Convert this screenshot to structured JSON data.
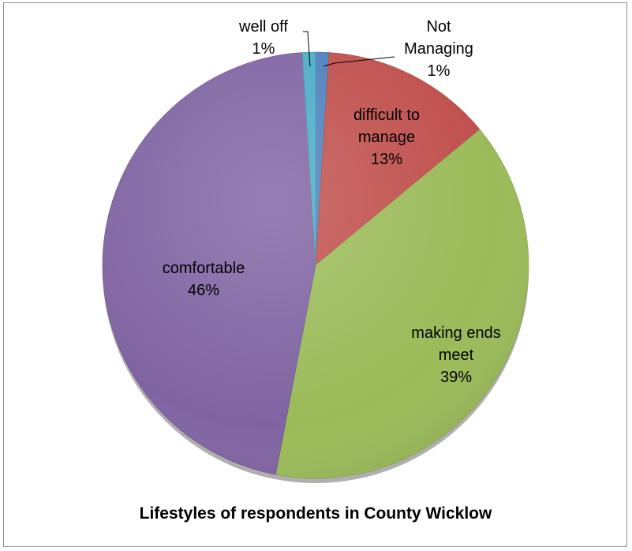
{
  "chart_data": {
    "type": "pie",
    "title": "Lifestyles of respondents in County Wicklow",
    "slices": [
      {
        "key": "not-managing",
        "label_lines": [
          "Not",
          "Managing"
        ],
        "pct_label": "1%",
        "value": 1,
        "color": "#4F81BD"
      },
      {
        "key": "difficult-to-manage",
        "label_lines": [
          "difficult to",
          "manage"
        ],
        "pct_label": "13%",
        "value": 13,
        "color": "#C0504D"
      },
      {
        "key": "making-ends-meet",
        "label_lines": [
          "making ends",
          "meet"
        ],
        "pct_label": "39%",
        "value": 39,
        "color": "#9BBB59"
      },
      {
        "key": "comfortable",
        "label_lines": [
          "comfortable"
        ],
        "pct_label": "46%",
        "value": 46,
        "color": "#8064A2"
      },
      {
        "key": "well-off",
        "label_lines": [
          "well off"
        ],
        "pct_label": "1%",
        "value": 1,
        "color": "#4BACC6"
      }
    ],
    "legend": "none"
  }
}
